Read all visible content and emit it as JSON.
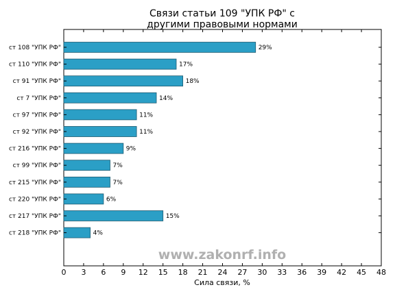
{
  "chart_data": {
    "type": "bar",
    "orientation": "horizontal",
    "title": [
      "Связи статьи 109 \"УПК РФ\" с",
      "другими правовыми нормами"
    ],
    "xlabel": "Сила связи, %",
    "ylabel": "",
    "xlim": [
      0,
      48
    ],
    "xticks": [
      0,
      3,
      6,
      9,
      12,
      15,
      18,
      21,
      24,
      27,
      30,
      33,
      36,
      39,
      42,
      45,
      48
    ],
    "categories": [
      "ст 108 \"УПК РФ\"",
      "ст 110 \"УПК РФ\"",
      "ст 91 \"УПК РФ\"",
      "ст 7 \"УПК РФ\"",
      "ст 97 \"УПК РФ\"",
      "ст 92 \"УПК РФ\"",
      "ст 216 \"УПК РФ\"",
      "ст 99 \"УПК РФ\"",
      "ст 215 \"УПК РФ\"",
      "ст 220 \"УПК РФ\"",
      "ст 217 \"УПК РФ\"",
      "ст 218 \"УПК РФ\""
    ],
    "values": [
      29,
      17,
      18,
      14,
      11,
      11,
      9,
      7,
      7,
      6,
      15,
      4
    ],
    "data_labels": [
      "29%",
      "17%",
      "18%",
      "14%",
      "11%",
      "11%",
      "9%",
      "7%",
      "7%",
      "6%",
      "15%",
      "4%"
    ],
    "bar_color": "#2b9fc6",
    "bar_edge_color": "#1e5a70",
    "grid": false,
    "watermark": "www.zakonrf.info"
  }
}
